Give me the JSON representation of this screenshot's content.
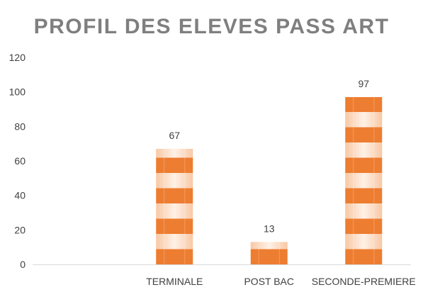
{
  "chart_data": {
    "type": "bar",
    "title": "PROFIL DES ELEVES PASS ART",
    "categories": [
      "",
      "TERMINALE",
      "POST BAC",
      "SECONDE-PREMIERE"
    ],
    "values": [
      null,
      67,
      13,
      97
    ],
    "data_labels": [
      "",
      "67",
      "13",
      "97"
    ],
    "ylim": [
      0,
      120
    ],
    "yticks": [
      0,
      20,
      40,
      60,
      80,
      100,
      120
    ],
    "ytick_labels": [
      "0",
      "20",
      "40",
      "60",
      "80",
      "100",
      "120"
    ],
    "grid": false,
    "legend": "none",
    "colors": {
      "stripe_dark": "#ED7D31",
      "stripe_light": "#FBE0CC"
    }
  }
}
